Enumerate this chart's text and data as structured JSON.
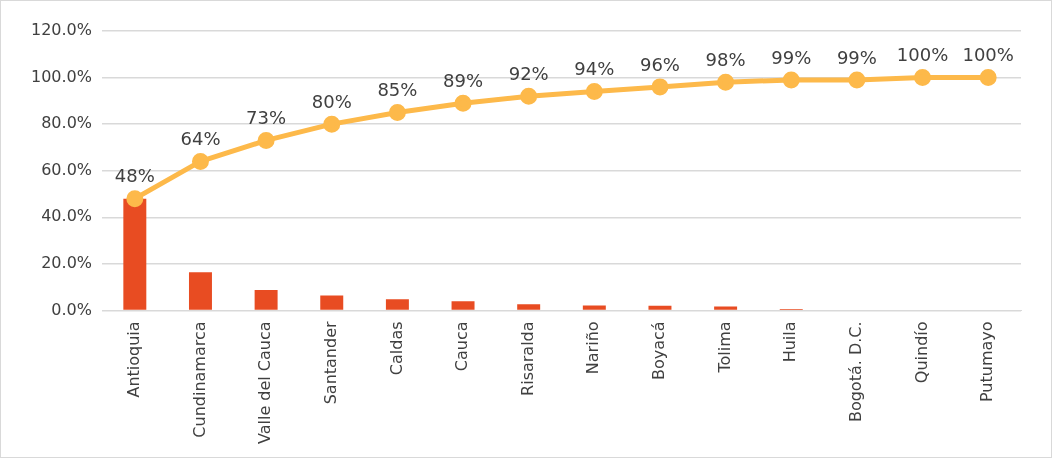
{
  "chart_data": {
    "type": "bar",
    "categories": [
      "Antioquia",
      "Cundinamarca",
      "Valle del Cauca",
      "Santander",
      "Caldas",
      "Cauca",
      "Risaralda",
      "Nariño",
      "Boyacá",
      "Tolima",
      "Huila",
      "Bogotá. D.C.",
      "Quindío",
      "Putumayo"
    ],
    "series": [
      {
        "color": "#e84c22",
        "values": [
          48,
          16.4,
          8.8,
          6.4,
          4.8,
          3.9,
          2.7,
          2.1,
          2,
          1.7,
          0.6,
          null,
          null,
          null
        ]
      },
      {
        "type": "line",
        "color": "#fdb94a",
        "marker": "circle",
        "values": [
          48,
          64,
          73,
          80,
          85,
          89,
          92,
          94,
          96,
          98,
          99,
          99,
          100,
          100
        ],
        "value_labels": [
          "48%",
          "64%",
          "73%",
          "80%",
          "85%",
          "89%",
          "92%",
          "94%",
          "96%",
          "98%",
          "99%",
          "99%",
          "100%",
          "100%"
        ]
      }
    ],
    "ylim": [
      0,
      120
    ],
    "yticks": [
      {
        "value": 0,
        "label": "0.0%"
      },
      {
        "value": 20,
        "label": "20.0%"
      },
      {
        "value": 40,
        "label": "40.0%"
      },
      {
        "value": 60,
        "label": "60.0%"
      },
      {
        "value": 80,
        "label": "80.0%"
      },
      {
        "value": 100,
        "label": "100.0%"
      },
      {
        "value": 120,
        "label": "120.0%"
      }
    ],
    "grid": "y",
    "legend": false
  }
}
